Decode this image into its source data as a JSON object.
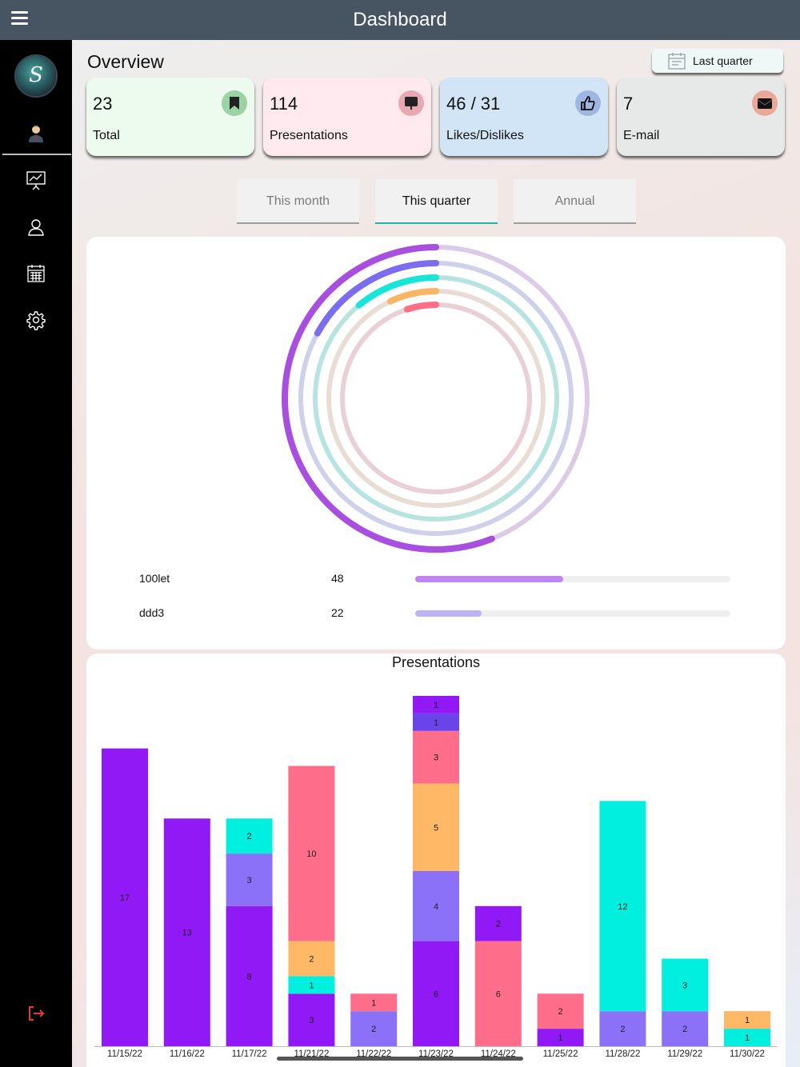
{
  "header": {
    "title": "Dashboard"
  },
  "sidebar": {
    "logo_letter": "S",
    "icons": [
      "user-icon",
      "presentation-icon",
      "person-icon",
      "calendar-icon",
      "settings-icon",
      "logout-icon"
    ]
  },
  "overview": {
    "title": "Overview",
    "period_button": "Last quarter"
  },
  "stats": [
    {
      "value": "23",
      "label": "Total",
      "icon": "bookmark-icon",
      "bg": "#edfbee",
      "badge": "#9bd3a4"
    },
    {
      "value": "114",
      "label": "Presentations",
      "icon": "presentation-icon",
      "bg": "#fde9ee",
      "badge": "#e8a9b5"
    },
    {
      "value": "46 / 31",
      "label": "Likes/Dislikes",
      "icon": "thumbs-up-icon",
      "bg": "#d2e5f6",
      "badge": "#9eb6e2"
    },
    {
      "value": "7",
      "label": "E-mail",
      "icon": "envelope-icon",
      "bg": "#e7e9e8",
      "badge": "#eaa898"
    }
  ],
  "tabs": [
    {
      "label": "This month",
      "active": false
    },
    {
      "label": "This quarter",
      "active": true
    },
    {
      "label": "Annual",
      "active": false
    }
  ],
  "rings": {
    "items": [
      {
        "fraction": 0.56,
        "color": "#a84fe0",
        "track": "#dbcbe7"
      },
      {
        "fraction": 0.17,
        "color": "#7b6cf0",
        "track": "#cfd0ea"
      },
      {
        "fraction": 0.11,
        "color": "#16e6d8",
        "track": "#b7e4e1"
      },
      {
        "fraction": 0.07,
        "color": "#f9b566",
        "track": "#e8dcd4"
      },
      {
        "fraction": 0.05,
        "color": "#fe6f87",
        "track": "#e9cfd6"
      }
    ],
    "legend": [
      {
        "name": "100let",
        "value": "48",
        "fraction": 0.47,
        "color": "#c084f3"
      },
      {
        "name": "ddd3",
        "value": "22",
        "fraction": 0.21,
        "color": "#bcb2f7"
      }
    ]
  },
  "chart_data": {
    "type": "bar",
    "title": "Presentations",
    "stacked": true,
    "ylim": [
      0,
      20
    ],
    "colors": {
      "violet": "#9119f5",
      "periwinkle": "#8a71f8",
      "cyan": "#00efde",
      "orange": "#feb866",
      "pink": "#fe6e8a",
      "indigo": "#6a43ea"
    },
    "categories": [
      "11/15/22",
      "11/16/22",
      "11/17/22",
      "11/21/22",
      "11/22/22",
      "11/23/22",
      "11/24/22",
      "11/25/22",
      "11/28/22",
      "11/29/22",
      "11/30/22"
    ],
    "stacks": [
      [
        {
          "value": 17,
          "color": "violet"
        }
      ],
      [
        {
          "value": 13,
          "color": "violet"
        }
      ],
      [
        {
          "value": 8,
          "color": "violet"
        },
        {
          "value": 3,
          "color": "periwinkle"
        },
        {
          "value": 2,
          "color": "cyan"
        }
      ],
      [
        {
          "value": 3,
          "color": "violet"
        },
        {
          "value": 1,
          "color": "cyan"
        },
        {
          "value": 2,
          "color": "orange"
        },
        {
          "value": 10,
          "color": "pink"
        }
      ],
      [
        {
          "value": 2,
          "color": "periwinkle"
        },
        {
          "value": 1,
          "color": "pink"
        }
      ],
      [
        {
          "value": 6,
          "color": "violet"
        },
        {
          "value": 4,
          "color": "periwinkle"
        },
        {
          "value": 5,
          "color": "orange"
        },
        {
          "value": 3,
          "color": "pink"
        },
        {
          "value": 1,
          "color": "indigo"
        },
        {
          "value": 1,
          "color": "violet"
        }
      ],
      [
        {
          "value": 6,
          "color": "pink"
        },
        {
          "value": 2,
          "color": "violet"
        }
      ],
      [
        {
          "value": 1,
          "color": "violet"
        },
        {
          "value": 2,
          "color": "pink"
        }
      ],
      [
        {
          "value": 2,
          "color": "periwinkle"
        },
        {
          "value": 12,
          "color": "cyan"
        }
      ],
      [
        {
          "value": 2,
          "color": "periwinkle"
        },
        {
          "value": 3,
          "color": "cyan"
        }
      ],
      [
        {
          "value": 1,
          "color": "cyan"
        },
        {
          "value": 1,
          "color": "orange"
        }
      ]
    ]
  }
}
